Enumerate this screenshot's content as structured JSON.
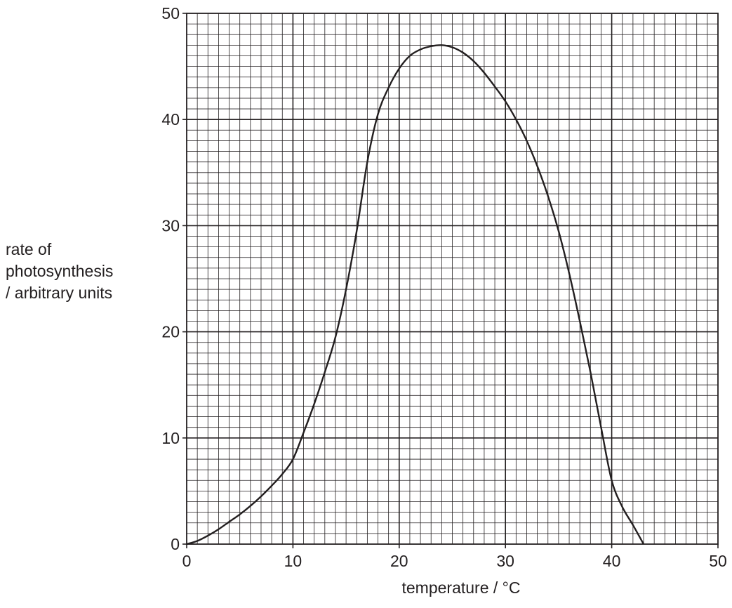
{
  "chart_data": {
    "type": "line",
    "xlabel": "temperature / °C",
    "ylabel_lines": [
      "rate of",
      "photosynthesis",
      "/ arbitrary units"
    ],
    "xlim": [
      0,
      50
    ],
    "ylim": [
      0,
      50
    ],
    "x_ticks": [
      "0",
      "10",
      "20",
      "30",
      "40",
      "50"
    ],
    "y_ticks": [
      "0",
      "10",
      "20",
      "30",
      "40",
      "50"
    ],
    "grid": {
      "major_step": 10,
      "minor_step": 1
    },
    "colors": {
      "line": "#231f20",
      "grid": "#231f20"
    },
    "series": [
      {
        "x": [
          0,
          1,
          2,
          3,
          4,
          5,
          6,
          7,
          8,
          9,
          10,
          11,
          12,
          13,
          14,
          15,
          16,
          17,
          18,
          19,
          20,
          21,
          22,
          23,
          24,
          25,
          26,
          27,
          28,
          29,
          30,
          31,
          32,
          33,
          34,
          35,
          36,
          37,
          38,
          39,
          40,
          41,
          42,
          43
        ],
        "y": [
          0,
          0.3,
          0.8,
          1.4,
          2.1,
          2.8,
          3.6,
          4.5,
          5.5,
          6.6,
          8.0,
          10.5,
          13.2,
          16.2,
          19.5,
          24.0,
          29.5,
          36.0,
          40.5,
          43.0,
          44.8,
          46.0,
          46.6,
          46.9,
          47.0,
          46.8,
          46.3,
          45.5,
          44.4,
          43.1,
          41.7,
          40.0,
          38.0,
          35.6,
          32.8,
          29.5,
          25.5,
          21.0,
          16.2,
          11.0,
          6.0,
          3.5,
          1.8,
          0
        ]
      }
    ]
  }
}
